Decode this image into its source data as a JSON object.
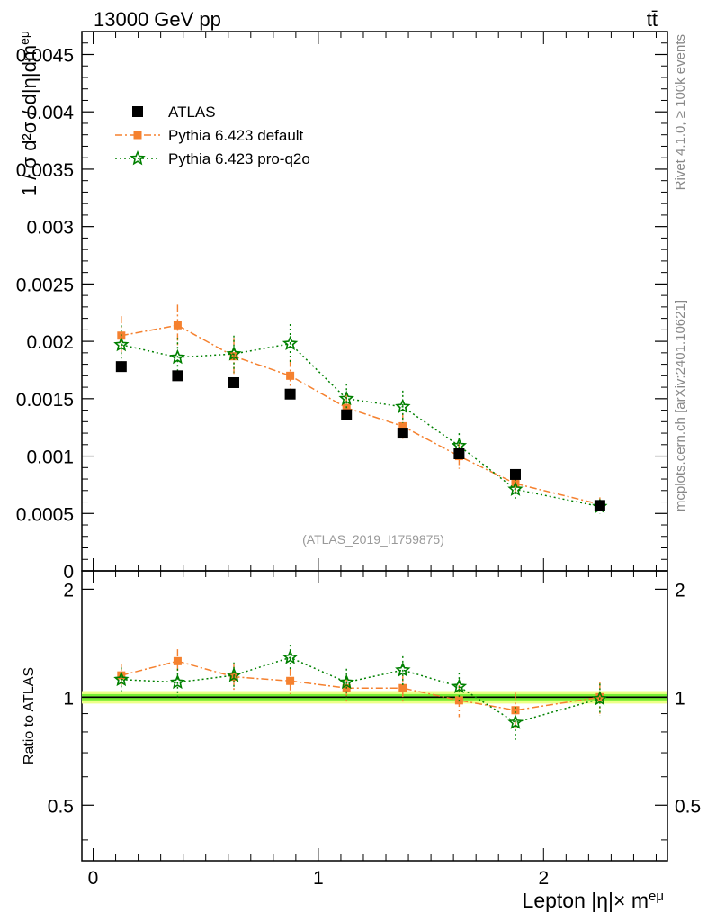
{
  "header": {
    "left": "13000 GeV pp",
    "right": "tt̄"
  },
  "side_text": {
    "rivet": "Rivet 4.1.0, ≥ 100k events",
    "mcplots": "mcplots.cern.ch [arXiv:2401.10621]"
  },
  "watermark": "(ATLAS_2019_I1759875)",
  "colors": {
    "atlas": "#000000",
    "default": "#f5812f",
    "proq2o": "#008000",
    "band_inner": "#77ee33",
    "band_outer": "#eeff88"
  },
  "chart_data": [
    {
      "type": "scatter",
      "panel": "main",
      "title": "",
      "xlabel": "Lepton |η|× m^eμ",
      "ylabel": "1 / σ d²σ / d|η|dm^eμ",
      "xlim": [
        -0.05,
        2.55
      ],
      "ylim": [
        0,
        0.0047
      ],
      "y_ticks": [
        0,
        0.0005,
        0.001,
        0.0015,
        0.002,
        0.0025,
        0.003,
        0.0035,
        0.004,
        0.0045
      ],
      "y_tick_labels": [
        "0",
        "0.0005",
        "0.001",
        "0.0015",
        "0.002",
        "0.0025",
        "0.003",
        "0.0035",
        "0.004",
        "0.0045"
      ],
      "x": [
        0.125,
        0.375,
        0.625,
        0.875,
        1.125,
        1.375,
        1.625,
        1.875,
        2.25
      ],
      "series": [
        {
          "name": "ATLAS",
          "style": "square",
          "values": [
            0.00178,
            0.0017,
            0.00164,
            0.00154,
            0.00136,
            0.0012,
            0.00102,
            0.00084,
            0.00057
          ],
          "errors": [
            2e-05,
            2e-05,
            2e-05,
            2e-05,
            4e-05,
            3e-05,
            3e-05,
            3e-05,
            2e-05
          ]
        },
        {
          "name": "Pythia 6.423 default",
          "style": "orange-square-dashdot",
          "values": [
            0.00205,
            0.00214,
            0.00187,
            0.0017,
            0.00142,
            0.00126,
            0.001,
            0.00076,
            0.00058
          ],
          "errors": [
            0.00017,
            0.00018,
            0.00016,
            0.00014,
            0.00012,
            0.00011,
            0.00011,
            0.0001,
            6e-05
          ]
        },
        {
          "name": "Pythia 6.423 pro-q2o",
          "style": "green-star-dotted",
          "values": [
            0.00197,
            0.00186,
            0.00189,
            0.00198,
            0.0015,
            0.00143,
            0.00109,
            0.00071,
            0.00056
          ],
          "errors": [
            0.00017,
            0.00017,
            0.00016,
            0.00017,
            0.00013,
            0.00014,
            0.00011,
            9e-05,
            6e-05
          ]
        }
      ]
    },
    {
      "type": "line",
      "panel": "ratio",
      "ylabel": "Ratio to ATLAS",
      "ylim": [
        0.35,
        2.25
      ],
      "y_tick_labels": [
        "0.5",
        "1",
        "2"
      ],
      "y_ticks": [
        0.5,
        1,
        2
      ],
      "x_ticks": [
        0,
        1,
        2
      ],
      "x_tick_labels": [
        "0",
        "1",
        "2"
      ],
      "band": {
        "inner": 0.02,
        "outer": 0.04
      },
      "x": [
        0.125,
        0.375,
        0.625,
        0.875,
        1.125,
        1.375,
        1.625,
        1.875,
        2.25
      ],
      "series": [
        {
          "name": "Pythia 6.423 default",
          "values": [
            1.15,
            1.26,
            1.14,
            1.11,
            1.06,
            1.06,
            0.98,
            0.92,
            1.0
          ],
          "errors": [
            0.09,
            0.1,
            0.1,
            0.09,
            0.09,
            0.09,
            0.1,
            0.11,
            0.1
          ]
        },
        {
          "name": "Pythia 6.423 pro-q2o",
          "values": [
            1.12,
            1.1,
            1.15,
            1.29,
            1.1,
            1.19,
            1.07,
            0.85,
            0.99
          ],
          "errors": [
            0.09,
            0.1,
            0.1,
            0.11,
            0.1,
            0.11,
            0.1,
            0.09,
            0.1
          ]
        }
      ]
    }
  ]
}
